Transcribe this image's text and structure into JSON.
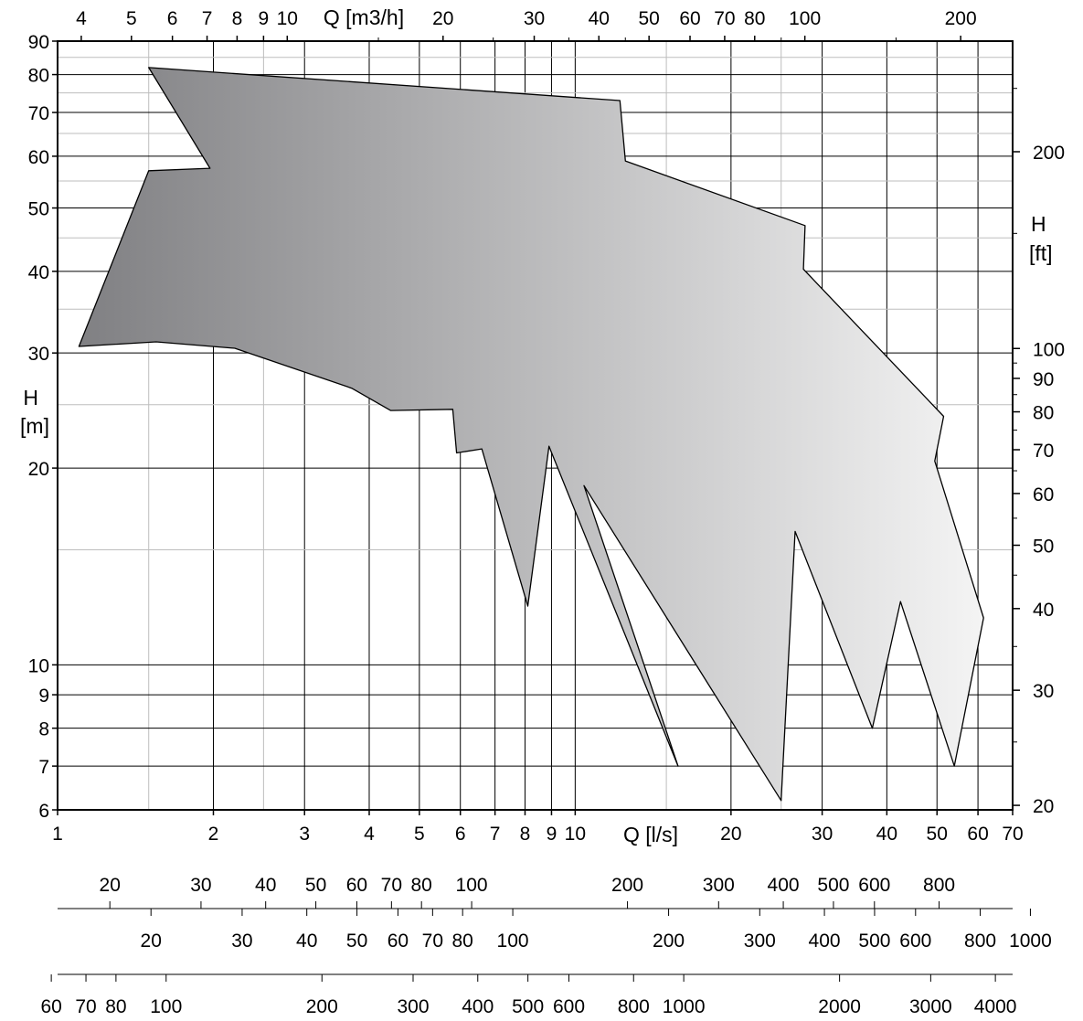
{
  "chart_data": {
    "type": "area",
    "title": "",
    "scale": "log-log",
    "grid": true,
    "legend": "none",
    "colors": {
      "fill_dark": "#808083",
      "fill_light": "#f4f4f4",
      "outline": "#000000",
      "grid": "#000000",
      "grid_minor": "#bdbdbd"
    },
    "x_axis": {
      "label": "Q  [l/s]",
      "unit": "l/s",
      "range": [
        1,
        70
      ],
      "ticks": [
        "1",
        "2",
        "3",
        "4",
        "5",
        "6",
        "7",
        "8",
        "9",
        "10",
        "20",
        "30",
        "40",
        "50",
        "60",
        "70"
      ]
    },
    "x_top_axis": {
      "label": "Q [m3/h]",
      "ticks_left": [
        "4",
        "5",
        "6",
        "7",
        "8",
        "9",
        "10"
      ],
      "ticks_right": [
        "20",
        "30",
        "40",
        "50",
        "60",
        "70",
        "80",
        "100",
        "200"
      ]
    },
    "y_axis": {
      "label_line1": "H",
      "label_line2": "[m]",
      "range": [
        6,
        90
      ],
      "ticks": [
        "6",
        "7",
        "8",
        "9",
        "10",
        "20",
        "30",
        "40",
        "50",
        "60",
        "70",
        "80",
        "90"
      ]
    },
    "y_right_axis": {
      "label_line1": "H",
      "label_line2": "[ft]",
      "ticks": [
        "20",
        "30",
        "40",
        "50",
        "60",
        "70",
        "80",
        "90",
        "100",
        "200"
      ]
    },
    "extra_scales": [
      {
        "name": "scale-1",
        "ticks": [
          "20",
          "30",
          "40",
          "50",
          "60",
          "70",
          "80",
          "100",
          "200",
          "300",
          "400",
          "500",
          "600",
          "800"
        ]
      },
      {
        "name": "scale-2",
        "ticks": [
          "20",
          "30",
          "40",
          "50",
          "60",
          "70",
          "80",
          "100",
          "200",
          "300",
          "400",
          "500",
          "600",
          "800",
          "1000"
        ]
      },
      {
        "name": "scale-3",
        "ticks": [
          "60",
          "70",
          "80",
          "100",
          "200",
          "300",
          "400",
          "500",
          "600",
          "800",
          "1000",
          "2000",
          "3000",
          "4000"
        ]
      }
    ],
    "series": [
      {
        "description_points_Q_H": [
          [
            1.5,
            82
          ],
          [
            1.97,
            57.5
          ],
          [
            1.5,
            57
          ],
          [
            1.1,
            30.7
          ],
          [
            1.55,
            31.2
          ],
          [
            2.2,
            30.5
          ],
          [
            3.7,
            26.5
          ],
          [
            4.4,
            24.5
          ],
          [
            5.8,
            24.6
          ],
          [
            5.9,
            21.1
          ],
          [
            6.6,
            21.4
          ],
          [
            8.1,
            12.3
          ],
          [
            8.9,
            21.6
          ],
          [
            15.8,
            7.0
          ],
          [
            10.4,
            18.8
          ],
          [
            25.0,
            6.2
          ],
          [
            26.6,
            16.0
          ],
          [
            37.5,
            8.0
          ],
          [
            42.5,
            12.5
          ],
          [
            54.0,
            7.0
          ],
          [
            61.5,
            11.8
          ],
          [
            49.5,
            20.5
          ],
          [
            51.5,
            24.0
          ],
          [
            27.6,
            40.3
          ],
          [
            27.8,
            47.0
          ],
          [
            12.5,
            59.0
          ],
          [
            12.2,
            73.0
          ],
          [
            1.5,
            82
          ]
        ],
        "values": [
          82,
          57.5,
          57,
          30.7,
          31.2,
          30.5,
          26.5,
          24.5,
          24.6,
          21.1,
          21.4,
          12.3,
          21.6,
          7.0,
          18.8,
          6.2,
          16.0,
          8.0,
          12.5,
          7.0,
          11.8,
          20.5,
          24.0,
          40.3,
          47.0,
          59.0,
          73.0,
          82
        ]
      }
    ]
  }
}
